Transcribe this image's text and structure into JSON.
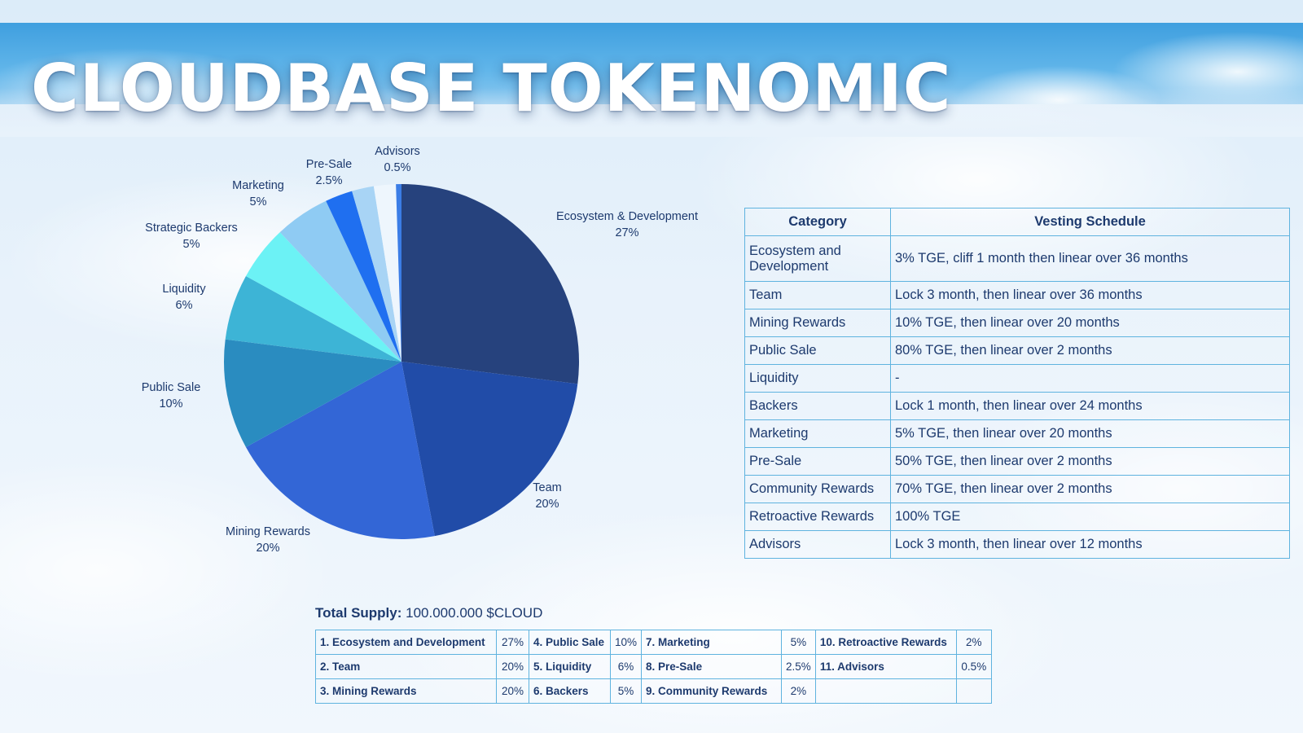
{
  "title": "CLOUDBASE TOKENOMIC",
  "colors": {
    "ecosystem": "#26427d",
    "team": "#214ca8",
    "mining": "#3366d6",
    "public_sale": "#2a8cc0",
    "liquidity": "#3db4d6",
    "strategic_backers": "#6cf2f5",
    "marketing": "#8fcbf3",
    "pre_sale": "#1f6ff0",
    "community": "#a8d4f5",
    "retroactive": "#eef6fd",
    "advisors": "#3b7de6"
  },
  "chart_data": {
    "type": "pie",
    "title": "",
    "slices": [
      {
        "label": "Ecosystem & Development",
        "value": 27,
        "value_text": "27%"
      },
      {
        "label": "Team",
        "value": 20,
        "value_text": "20%"
      },
      {
        "label": "Mining Rewards",
        "value": 20,
        "value_text": "20%"
      },
      {
        "label": "Public Sale",
        "value": 10,
        "value_text": "10%"
      },
      {
        "label": "Liquidity",
        "value": 6,
        "value_text": "6%"
      },
      {
        "label": "Strategic Backers",
        "value": 5,
        "value_text": "5%"
      },
      {
        "label": "Marketing",
        "value": 5,
        "value_text": "5%"
      },
      {
        "label": "Pre-Sale",
        "value": 2.5,
        "value_text": "2.5%"
      },
      {
        "label": "",
        "value": 2,
        "value_text": ""
      },
      {
        "label": "",
        "value": 2,
        "value_text": ""
      },
      {
        "label": "Advisors",
        "value": 0.5,
        "value_text": "0.5%"
      }
    ],
    "slice_colors": [
      "#26427d",
      "#214ca8",
      "#3366d6",
      "#2a8cc0",
      "#3db4d6",
      "#6cf2f5",
      "#8fcbf3",
      "#1f6ff0",
      "#a8d4f5",
      "#eef6fd",
      "#3b7de6"
    ],
    "start_angle_deg": 0,
    "direction": "clockwise"
  },
  "vesting_table": {
    "headers": [
      "Category",
      "Vesting Schedule"
    ],
    "rows": [
      [
        "Ecosystem and Development",
        "3% TGE, cliff 1 month then linear over 36 months"
      ],
      [
        "Team",
        "Lock 3 month, then linear over 36 months"
      ],
      [
        "Mining Rewards",
        "10% TGE, then linear over 20 months"
      ],
      [
        "Public Sale",
        "80% TGE, then linear over 2 months"
      ],
      [
        "Liquidity",
        "-"
      ],
      [
        "Backers",
        "Lock 1 month, then linear over 24 months"
      ],
      [
        "Marketing",
        "5% TGE, then linear over 20 months"
      ],
      [
        "Pre-Sale",
        "50% TGE,  then linear over 2 months"
      ],
      [
        "Community Rewards",
        "70% TGE, then linear over 2 months"
      ],
      [
        "Retroactive Rewards",
        "100% TGE"
      ],
      [
        "Advisors",
        "Lock 3 month, then linear over 12 months"
      ]
    ]
  },
  "supply": {
    "label": "Total Supply:",
    "value": "100.000.000 $CLOUD"
  },
  "allocation": {
    "rows": [
      [
        {
          "name": "1. Ecosystem and Development",
          "pct": "27%"
        },
        {
          "name": "4. Public Sale",
          "pct": "10%"
        },
        {
          "name": "7. Marketing",
          "pct": "5%"
        },
        {
          "name": "10. Retroactive Rewards",
          "pct": "2%"
        }
      ],
      [
        {
          "name": "2. Team",
          "pct": "20%"
        },
        {
          "name": "5. Liquidity",
          "pct": "6%"
        },
        {
          "name": "8. Pre-Sale",
          "pct": "2.5%"
        },
        {
          "name": "11. Advisors",
          "pct": "0.5%"
        }
      ],
      [
        {
          "name": "3. Mining Rewards",
          "pct": "20%"
        },
        {
          "name": "6. Backers",
          "pct": "5%"
        },
        {
          "name": "9. Community Rewards",
          "pct": "2%"
        },
        {
          "name": "",
          "pct": ""
        }
      ]
    ]
  }
}
